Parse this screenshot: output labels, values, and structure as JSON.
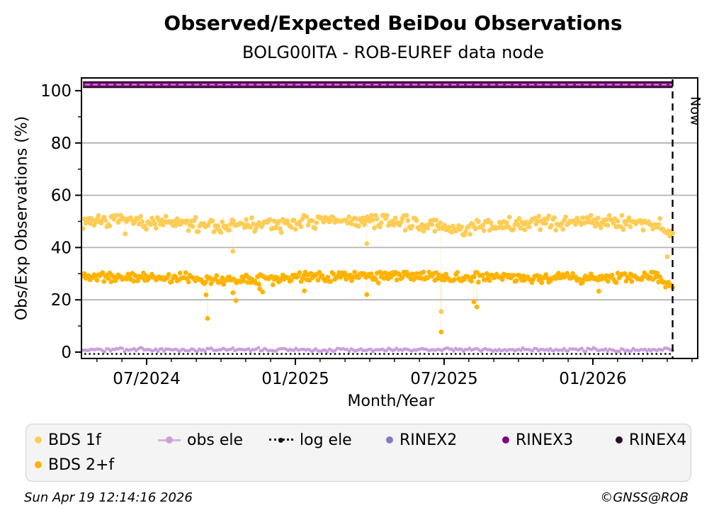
{
  "title": "Observed/Expected BeiDou Observations",
  "subtitle": "BOLG00ITA - ROB-EUREF data node",
  "footer": {
    "timestamp": "Sun Apr 19 12:14:16 2026",
    "credit": "©GNSS@ROB"
  },
  "legend": {
    "items": [
      {
        "label": "BDS 1f",
        "color": "#FFCC55",
        "marker": "dot"
      },
      {
        "label": "obs ele",
        "color": "#C9A0DC",
        "marker": "line-dot"
      },
      {
        "label": "log ele",
        "color": "#111111",
        "marker": "dotted-line-dot"
      },
      {
        "label": "RINEX2",
        "color": "#8878C0",
        "marker": "dot"
      },
      {
        "label": "RINEX3",
        "color": "#800080",
        "marker": "dot"
      },
      {
        "label": "RINEX4",
        "color": "#2B0B2B",
        "marker": "dot"
      },
      {
        "label": "BDS 2+f",
        "color": "#FFB300",
        "marker": "dot"
      }
    ]
  },
  "chart_data": {
    "type": "scatter",
    "title": "Observed/Expected BeiDou Observations",
    "subtitle": "BOLG00ITA - ROB-EUREF data node",
    "xlabel": "Month/Year",
    "ylabel": "Obs/Exp Observations (%)",
    "ylim": [
      -2.5,
      105
    ],
    "xlim_years": [
      2024.286,
      2026.352
    ],
    "grid": true,
    "grid_y_values": [
      20,
      40,
      60,
      80
    ],
    "y_major_ticks": [
      0,
      20,
      40,
      60,
      80,
      100
    ],
    "y_minor_ticks": [
      10,
      30,
      50,
      70,
      90
    ],
    "x_major_ticks": [
      {
        "year": 2024.5,
        "label": "07/2024"
      },
      {
        "year": 2025.0,
        "label": "01/2025"
      },
      {
        "year": 2025.5,
        "label": "07/2025"
      },
      {
        "year": 2026.0,
        "label": "01/2026"
      }
    ],
    "x_minor_tick_months": {
      "from": "2024-05",
      "to": "2026-05",
      "step_months": 1
    },
    "now_line": {
      "year": 2026.268,
      "label": "Now"
    },
    "rinex_band": {
      "series": [
        "RINEX2",
        "RINEX3",
        "RINEX4"
      ],
      "y_percent": 102.3,
      "x_start_year": 2024.286,
      "x_end_year": 2026.268,
      "edge_color": "#240522",
      "fill_color": "#8B0F8B",
      "dash_color": "#C9A3CF"
    },
    "series": [
      {
        "name": "obs ele",
        "color": "#C9A0DC",
        "kind": "band",
        "seed": 3,
        "mean": 0.9,
        "spread": 0.5,
        "wave_amp": 0,
        "wave_freq": 0,
        "wave_phase": 0,
        "down_chance": 0,
        "down_mag": 0,
        "dip_center": -1,
        "dip_width": 1,
        "dip_mag": 0,
        "end_dip_start": 2,
        "end_dip_mag": 0,
        "clamp": [
          0.2,
          1.8
        ],
        "n": 300,
        "marker_r": 2.4,
        "outliers": []
      },
      {
        "name": "log ele",
        "color": "#111111",
        "kind": "dotted",
        "y": -0.7
      },
      {
        "name": "BDS 1f",
        "color": "#FFCC55",
        "kind": "band",
        "seed": 7,
        "mean": 49.4,
        "spread": 2.0,
        "wave_amp": 0.9,
        "wave_freq": 2.3,
        "wave_phase": 1.2,
        "down_chance": 0.06,
        "down_mag": 2.6,
        "dip_center": 0.63,
        "dip_width": 0.0015,
        "dip_mag": 1.5,
        "end_dip_start": 0.97,
        "end_dip_mag": 4.5,
        "clamp": [
          41.5,
          52.3
        ],
        "n": 420,
        "marker_r": 3.4,
        "outliers": [
          [
            2024.79,
            38.6
          ],
          [
            2025.24,
            41.5
          ],
          [
            2025.49,
            15.5
          ],
          [
            2026.25,
            36.5
          ]
        ]
      },
      {
        "name": "BDS 2+f",
        "color": "#FFB300",
        "kind": "band",
        "seed": 11,
        "mean": 28.8,
        "spread": 1.35,
        "wave_amp": 0.45,
        "wave_freq": 1.7,
        "wave_phase": 2.4,
        "down_chance": 0.05,
        "down_mag": 2.2,
        "dip_center": 0.24,
        "dip_width": 0.001,
        "dip_mag": 0.8,
        "end_dip_start": 0.972,
        "end_dip_mag": 4.3,
        "clamp": [
          22.5,
          30.6
        ],
        "n": 420,
        "marker_r": 3.4,
        "outliers": [
          [
            2024.7,
            21.9
          ],
          [
            2024.705,
            12.9
          ],
          [
            2024.79,
            22.7
          ],
          [
            2024.8,
            19.7
          ],
          [
            2024.88,
            24.2
          ],
          [
            2024.89,
            23.0
          ],
          [
            2025.03,
            23.4
          ],
          [
            2025.24,
            22.0
          ],
          [
            2025.49,
            7.7
          ],
          [
            2025.6,
            19.2
          ],
          [
            2025.61,
            17.3
          ],
          [
            2026.02,
            23.3
          ]
        ]
      }
    ],
    "legend_entries": [
      "BDS 1f",
      "obs ele",
      "log ele",
      "RINEX2",
      "RINEX3",
      "RINEX4",
      "BDS 2+f"
    ]
  }
}
